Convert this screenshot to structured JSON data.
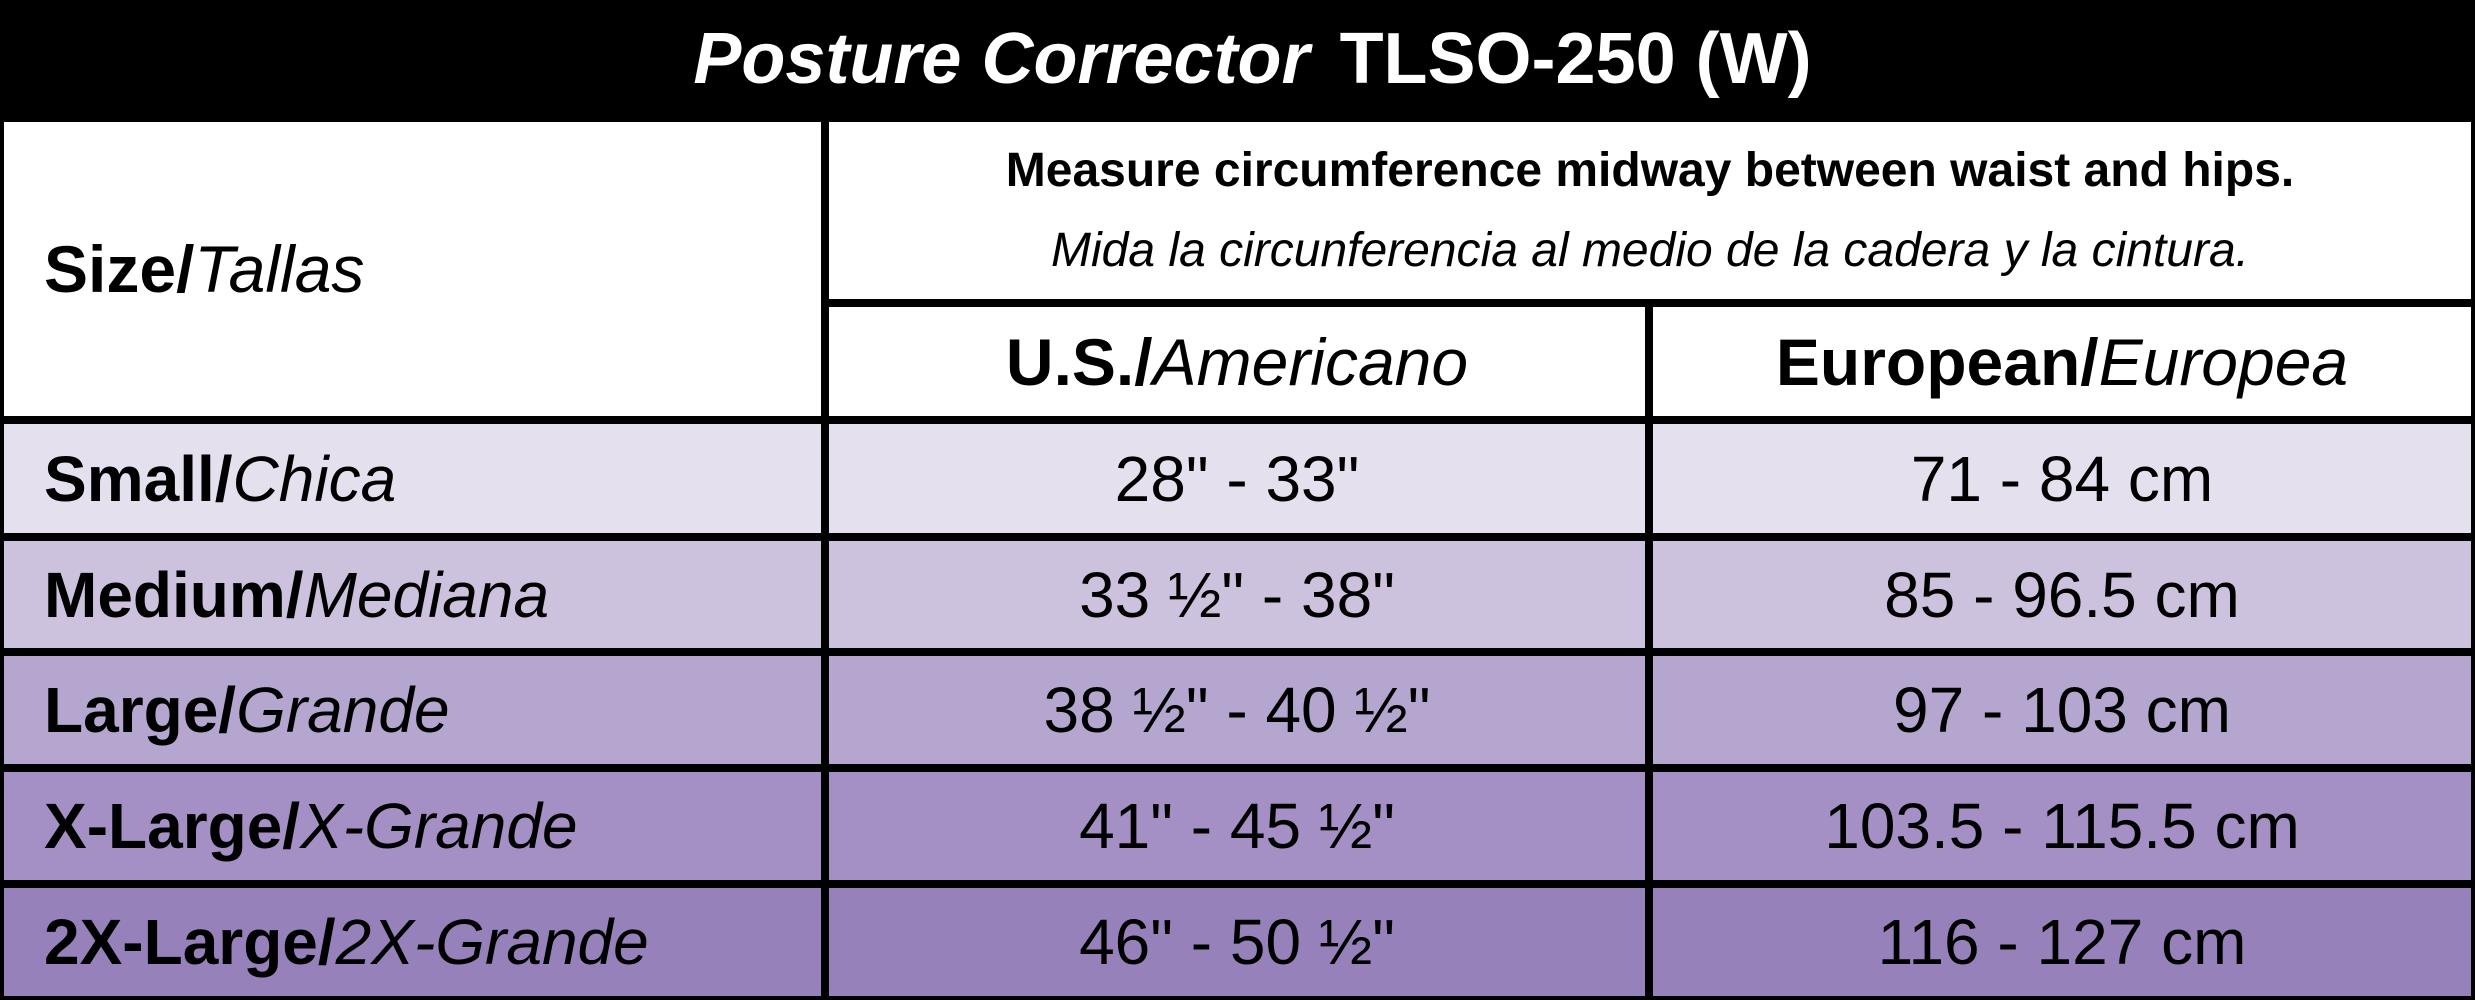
{
  "title": {
    "italic": "Posture Corrector",
    "regular": "TLSO-250 (W)"
  },
  "header": {
    "size": {
      "en": "Size/",
      "es": "Tallas"
    },
    "note": {
      "en": "Measure circumference midway between waist and hips.",
      "es": "Mida la circunferencia al medio de la cadera y la cintura."
    },
    "us": {
      "en": "U.S./",
      "es": "Americano"
    },
    "eu": {
      "en": "European/",
      "es": "Europea"
    }
  },
  "rows": [
    {
      "size": {
        "en": "Small/",
        "es": "Chica"
      },
      "us": "28\" - 33\"",
      "eu": "71 - 84 cm"
    },
    {
      "size": {
        "en": "Medium/",
        "es": "Mediana"
      },
      "us": "33 ½\" - 38\"",
      "eu": "85 - 96.5 cm"
    },
    {
      "size": {
        "en": "Large/",
        "es": "Grande"
      },
      "us": "38 ½\" - 40 ½\"",
      "eu": "97 - 103 cm"
    },
    {
      "size": {
        "en": "X-Large/",
        "es": "X-Grande"
      },
      "us": "41\" - 45 ½\"",
      "eu": "103.5 - 115.5 cm"
    },
    {
      "size": {
        "en": "2X-Large/",
        "es": "2X-Grande"
      },
      "us": "46\" - 50 ½\"",
      "eu": "116 - 127 cm"
    }
  ]
}
